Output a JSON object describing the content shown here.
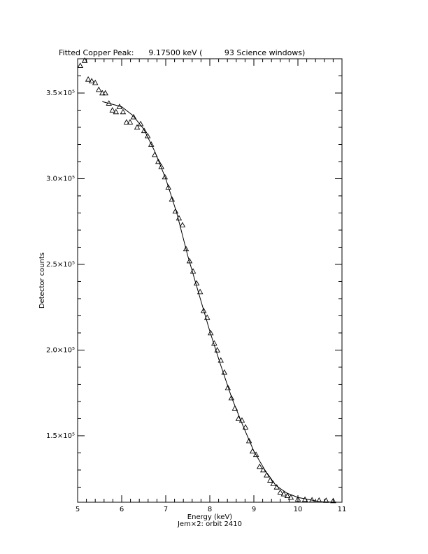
{
  "chart_data": {
    "type": "scatter",
    "title": "Fitted Copper Peak:      9.17500 keV (         93 Science windows)",
    "xlabel": "Energy (keV)",
    "ylabel": "Detector counts",
    "subtitle": "Jem×2: orbit 2410",
    "xlim": [
      5,
      11
    ],
    "ylim": [
      111200,
      370000
    ],
    "xticks": [
      5,
      6,
      7,
      8,
      9,
      10,
      11
    ],
    "xminorticks": [
      5.2,
      5.4,
      5.6,
      5.8,
      6.2,
      6.4,
      6.6,
      6.8,
      7.2,
      7.4,
      7.6,
      7.8,
      8.2,
      8.4,
      8.6,
      8.8,
      9.2,
      9.4,
      9.6,
      9.8,
      10.2,
      10.4,
      10.6,
      10.8
    ],
    "yticks": [
      {
        "value": 150000,
        "label": "1.5×10⁵"
      },
      {
        "value": 200000,
        "label": "2.0×10⁵"
      },
      {
        "value": 250000,
        "label": "2.5×10⁵"
      },
      {
        "value": 300000,
        "label": "3.0×10⁵"
      },
      {
        "value": 350000,
        "label": "3.5×10⁵"
      }
    ],
    "yminorticks": [
      120000,
      130000,
      140000,
      160000,
      170000,
      180000,
      190000,
      210000,
      220000,
      230000,
      240000,
      260000,
      270000,
      280000,
      290000,
      310000,
      320000,
      330000,
      340000,
      360000
    ],
    "series": [
      {
        "type": "scatter",
        "color": "#000000",
        "x": [
          5.06,
          5.16,
          5.24,
          5.32,
          5.4,
          5.48,
          5.56,
          5.63,
          5.71,
          5.79,
          5.87,
          5.95,
          6.03,
          6.11,
          6.19,
          6.27,
          6.35,
          6.43,
          6.51,
          6.59,
          6.67,
          6.75,
          6.83,
          6.9,
          6.98,
          7.06,
          7.14,
          7.22,
          7.3,
          7.38,
          7.46,
          7.54,
          7.62,
          7.7,
          7.78,
          7.86,
          7.94,
          8.02,
          8.1,
          8.17,
          8.25,
          8.33,
          8.41,
          8.49,
          8.57,
          8.65,
          8.73,
          8.81,
          8.89,
          8.97,
          9.05,
          9.13,
          9.21,
          9.29,
          9.37,
          9.44,
          9.52,
          9.6,
          9.68,
          9.76,
          9.84,
          10.0,
          10.16,
          10.32,
          10.48,
          10.64,
          10.8
        ],
        "values": [
          366000,
          369000,
          358000,
          357000,
          356000,
          352000,
          350000,
          350000,
          344000,
          340000,
          339000,
          342000,
          339000,
          333000,
          333000,
          336000,
          330000,
          332000,
          328000,
          325000,
          320000,
          314000,
          310000,
          307000,
          301000,
          295000,
          288000,
          281000,
          277000,
          273000,
          259000,
          252000,
          246000,
          239000,
          234000,
          223000,
          219000,
          210000,
          204000,
          200000,
          194000,
          187000,
          178000,
          172000,
          166000,
          160000,
          159000,
          155000,
          147000,
          141000,
          139000,
          132000,
          130000,
          127000,
          124000,
          122000,
          120000,
          117000,
          116000,
          115000,
          114000,
          113000,
          112800,
          112500,
          112300,
          112200,
          112000
        ]
      },
      {
        "type": "line",
        "color": "#000000",
        "x": [
          5.56,
          6.0,
          6.25,
          6.5,
          6.75,
          7.0,
          7.25,
          7.5,
          7.75,
          8.0,
          8.25,
          8.5,
          8.75,
          9.0,
          9.25,
          9.5,
          9.75,
          10.0,
          10.5,
          10.9
        ],
        "values": [
          345000,
          342000,
          337000,
          329000,
          316000,
          300000,
          280000,
          255000,
          233000,
          211000,
          191000,
          172000,
          156000,
          141000,
          130000,
          121000,
          116500,
          114000,
          111500,
          111200
        ]
      }
    ]
  }
}
